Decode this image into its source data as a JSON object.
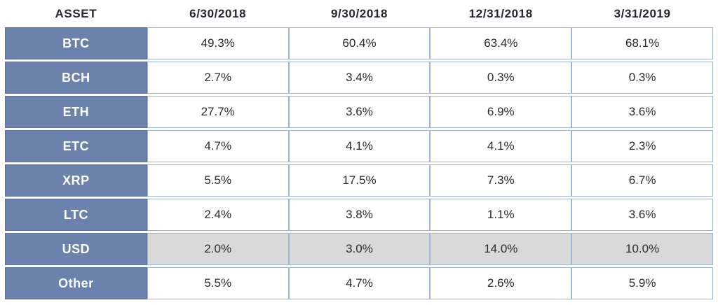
{
  "table": {
    "header": {
      "asset_label": "ASSET",
      "columns": [
        "6/30/2018",
        "9/30/2018",
        "12/31/2018",
        "3/31/2019"
      ]
    },
    "rows": [
      {
        "asset": "BTC",
        "values": [
          "49.3%",
          "60.4%",
          "63.4%",
          "68.1%"
        ],
        "highlight": false
      },
      {
        "asset": "BCH",
        "values": [
          "2.7%",
          "3.4%",
          "0.3%",
          "0.3%"
        ],
        "highlight": false
      },
      {
        "asset": "ETH",
        "values": [
          "27.7%",
          "3.6%",
          "6.9%",
          "3.6%"
        ],
        "highlight": false
      },
      {
        "asset": "ETC",
        "values": [
          "4.7%",
          "4.1%",
          "4.1%",
          "2.3%"
        ],
        "highlight": false
      },
      {
        "asset": "XRP",
        "values": [
          "5.5%",
          "17.5%",
          "7.3%",
          "6.7%"
        ],
        "highlight": false
      },
      {
        "asset": "LTC",
        "values": [
          "2.4%",
          "3.8%",
          "1.1%",
          "3.6%"
        ],
        "highlight": false
      },
      {
        "asset": "USD",
        "values": [
          "2.0%",
          "3.0%",
          "14.0%",
          "10.0%"
        ],
        "highlight": true
      },
      {
        "asset": "Other",
        "values": [
          "5.5%",
          "4.7%",
          "2.6%",
          "5.9%"
        ],
        "highlight": false
      }
    ]
  },
  "colors": {
    "asset_cell_bg": "#6b82ad",
    "asset_cell_border": "#5c719d",
    "asset_cell_text": "#ffffff",
    "value_cell_border": "#a3b2d2",
    "value_text": "#2b2b30",
    "header_text": "#26262e",
    "highlight_row_bg": "#d9d9d9"
  },
  "chart_data": {
    "type": "table",
    "title": "",
    "columns": [
      "ASSET",
      "6/30/2018",
      "9/30/2018",
      "12/31/2018",
      "3/31/2019"
    ],
    "rows": [
      [
        "BTC",
        49.3,
        60.4,
        63.4,
        68.1
      ],
      [
        "BCH",
        2.7,
        3.4,
        0.3,
        0.3
      ],
      [
        "ETH",
        27.7,
        3.6,
        6.9,
        3.6
      ],
      [
        "ETC",
        4.7,
        4.1,
        4.1,
        2.3
      ],
      [
        "XRP",
        5.5,
        17.5,
        7.3,
        6.7
      ],
      [
        "LTC",
        2.4,
        3.8,
        1.1,
        3.6
      ],
      [
        "USD",
        2.0,
        3.0,
        14.0,
        10.0
      ],
      [
        "Other",
        5.5,
        4.7,
        2.6,
        5.9
      ]
    ],
    "units": "percent",
    "notes_layout": "USD row shaded gray; asset column shaded blue with white text"
  }
}
